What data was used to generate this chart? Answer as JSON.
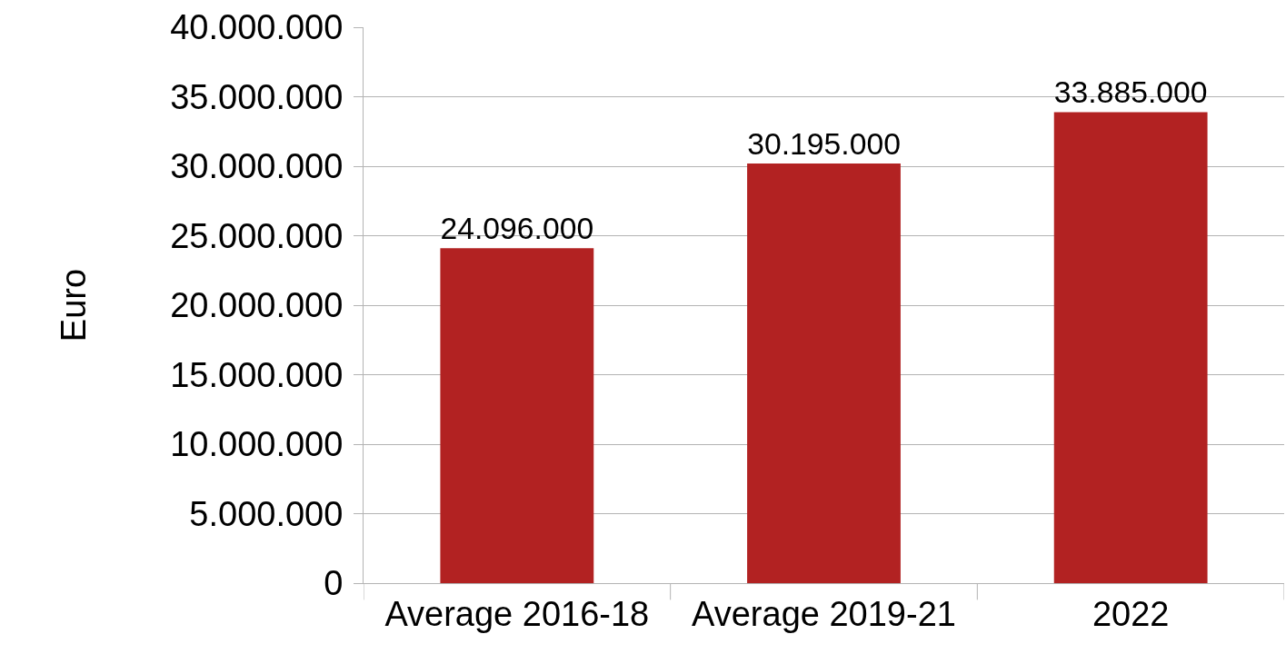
{
  "chart_data": {
    "type": "bar",
    "ylabel": "Euro",
    "categories": [
      "Average 2016-18",
      "Average 2019-21",
      "2022"
    ],
    "values": [
      24096000,
      30195000,
      33885000
    ],
    "color": "#b22222",
    "value_labels": [
      "24.096.000",
      "30.195.000",
      "33.885.000"
    ],
    "ylim": [
      0,
      40000000
    ],
    "yticks": [
      {
        "value": 0,
        "label": "0"
      },
      {
        "value": 5000000,
        "label": "5.000.000"
      },
      {
        "value": 10000000,
        "label": "10.000.000"
      },
      {
        "value": 15000000,
        "label": "15.000.000"
      },
      {
        "value": 20000000,
        "label": "20.000.000"
      },
      {
        "value": 25000000,
        "label": "25.000.000"
      },
      {
        "value": 30000000,
        "label": "30.000.000"
      },
      {
        "value": 35000000,
        "label": "35.000.000"
      },
      {
        "value": 40000000,
        "label": "40.000.000"
      }
    ],
    "grid": "y"
  }
}
